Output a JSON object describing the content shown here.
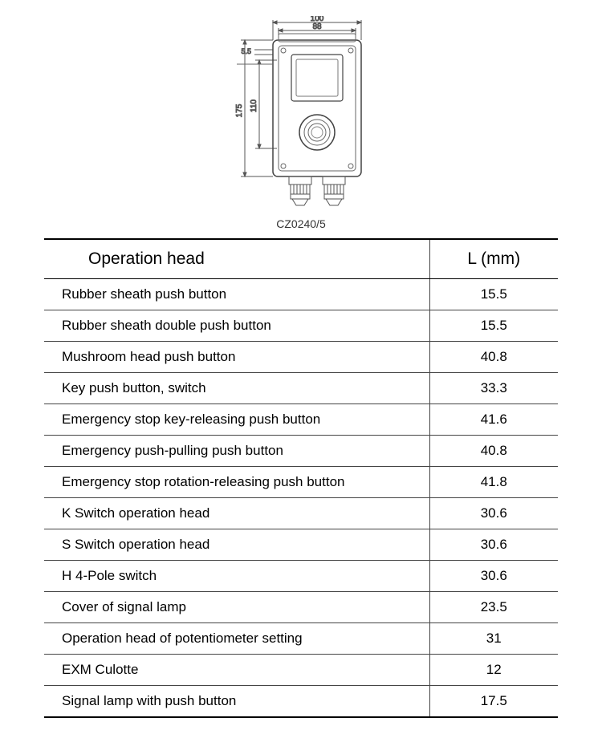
{
  "diagram": {
    "dim_top_outer": "100",
    "dim_top_inner": "88",
    "dim_left_outer": "175",
    "dim_left_inner": "110",
    "dim_small": "5.5",
    "stroke": "#555555",
    "stroke_light": "#888888",
    "fill": "#ffffff"
  },
  "model_label": "CZ0240/5",
  "table": {
    "header": {
      "col1": "Operation head",
      "col2": "L (mm)"
    },
    "rows": [
      {
        "name": "Rubber sheath push button",
        "value": "15.5"
      },
      {
        "name": "Rubber sheath double push button",
        "value": "15.5"
      },
      {
        "name": "Mushroom head push button",
        "value": "40.8"
      },
      {
        "name": "Key push button, switch",
        "value": "33.3"
      },
      {
        "name": "Emergency stop key-releasing push button",
        "value": "41.6"
      },
      {
        "name": "Emergency push-pulling push button",
        "value": "40.8"
      },
      {
        "name": "Emergency stop rotation-releasing push button",
        "value": "41.8"
      },
      {
        "name": "K Switch operation head",
        "value": "30.6"
      },
      {
        "name": "S Switch operation head",
        "value": "30.6"
      },
      {
        "name": "H  4-Pole switch",
        "value": "30.6"
      },
      {
        "name": "Cover of signal lamp",
        "value": "23.5"
      },
      {
        "name": "Operation head of potentiometer setting",
        "value": "31"
      },
      {
        "name": "EXM Culotte",
        "value": "12"
      },
      {
        "name": "Signal lamp with push button",
        "value": "17.5"
      }
    ]
  },
  "style": {
    "text_color": "#000000",
    "border_color": "#444444",
    "heavy_border": "#000000",
    "font_body": 17,
    "font_header": 21
  }
}
